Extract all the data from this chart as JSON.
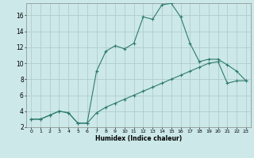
{
  "xlabel": "Humidex (Indice chaleur)",
  "bg_color": "#cce8e8",
  "grid_color": "#b0cccc",
  "line_color": "#2e7b6e",
  "x_line1": [
    0,
    1,
    2,
    3,
    4,
    5,
    6,
    7,
    8,
    9,
    10,
    11,
    12,
    13,
    14,
    15,
    16,
    17,
    18,
    19,
    20,
    21,
    22,
    23
  ],
  "y_line1": [
    3,
    3,
    3.5,
    4,
    3.8,
    2.5,
    2.5,
    9.0,
    11.5,
    12.2,
    11.8,
    12.5,
    15.8,
    15.5,
    17.3,
    17.5,
    15.8,
    12.5,
    10.2,
    10.5,
    10.5,
    9.8,
    9.0,
    7.8
  ],
  "x_line2": [
    0,
    1,
    2,
    3,
    4,
    5,
    6,
    7,
    8,
    9,
    10,
    11,
    12,
    13,
    14,
    15,
    16,
    17,
    18,
    19,
    20,
    21,
    22,
    23
  ],
  "y_line2": [
    3,
    3,
    3.5,
    4,
    3.8,
    2.5,
    2.5,
    3.8,
    4.5,
    5.0,
    5.5,
    6.0,
    6.5,
    7.0,
    7.5,
    8.0,
    8.5,
    9.0,
    9.5,
    10.0,
    10.2,
    7.5,
    7.8,
    7.8
  ],
  "ylim": [
    2,
    17.5
  ],
  "xlim": [
    -0.5,
    23.5
  ],
  "yticks": [
    2,
    4,
    6,
    8,
    10,
    12,
    14,
    16
  ],
  "xtick_labels": [
    "0",
    "1",
    "2",
    "3",
    "4",
    "5",
    "6",
    "7",
    "8",
    "9",
    "10",
    "11",
    "12",
    "13",
    "14",
    "15",
    "16",
    "17",
    "18",
    "19",
    "20",
    "21",
    "22",
    "23"
  ]
}
